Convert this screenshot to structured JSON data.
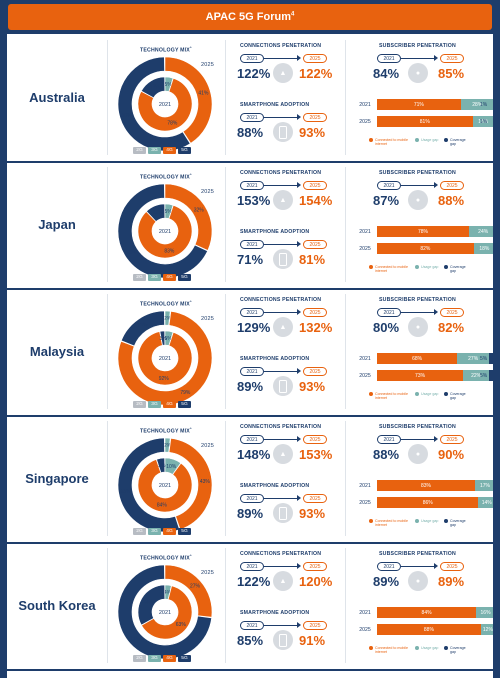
{
  "title": "APAC 5G Forum",
  "title_sup": "4",
  "labels": {
    "technology_mix": "TECHNOLOGY MIX",
    "technology_mix_asterisk": "*",
    "connections_penetration": "CONNECTIONS PENETRATION",
    "smartphone_adoption": "SMARTPHONE ADOPTION",
    "subscriber_penetration": "SUBSCRIBER PENETRATION",
    "year_2021": "2021",
    "year_2025": "2025",
    "legend_connected": "Connected to mobile internet",
    "legend_usage": "Usage gap",
    "legend_coverage": "Coverage gap",
    "tech_2g": "2G",
    "tech_3g": "3G",
    "tech_4g": "4G",
    "tech_5g": "5G"
  },
  "colors": {
    "navy": "#1e3d6b",
    "orange": "#e8620f",
    "teal": "#7ab2ae",
    "grey": "#b7bcc3",
    "light_grey": "#d7dbe0"
  },
  "chart_data": [
    {
      "country": "Australia",
      "type": "pie",
      "technology_mix": {
        "series_order": [
          "2G",
          "3G",
          "4G",
          "5G"
        ],
        "2021": {
          "2G": 0,
          "3G": 5,
          "4G": 78,
          "5G": 17,
          "labels": [
            "5%",
            "78%",
            "17%"
          ]
        },
        "2025": {
          "2G": 0,
          "3G": 0,
          "4G": 41,
          "5G": 59,
          "labels": [
            "41%",
            "59%"
          ]
        }
      },
      "connections_penetration": {
        "2021": "122%",
        "2025": "122%"
      },
      "smartphone_adoption": {
        "2021": "88%",
        "2025": "93%"
      },
      "subscriber_penetration": {
        "2021": "84%",
        "2025": "85%"
      },
      "internet_bars": [
        {
          "year": "2021",
          "connected": 71,
          "usage": 28,
          "coverage": 1,
          "labels": [
            "71%",
            "28%",
            "1%"
          ]
        },
        {
          "year": "2025",
          "connected": 81,
          "usage": 18,
          "coverage": 1,
          "labels": [
            "81%",
            "18%",
            "1%"
          ]
        }
      ]
    },
    {
      "country": "Japan",
      "type": "pie",
      "technology_mix": {
        "series_order": [
          "2G",
          "3G",
          "4G",
          "5G"
        ],
        "2021": {
          "2G": 0,
          "3G": 5,
          "4G": 83,
          "5G": 12,
          "labels": [
            "5%",
            "83%",
            "12%"
          ]
        },
        "2025": {
          "2G": 0,
          "3G": 0,
          "4G": 32,
          "5G": 68,
          "labels": [
            "32%",
            "68%"
          ]
        }
      },
      "connections_penetration": {
        "2021": "153%",
        "2025": "154%"
      },
      "smartphone_adoption": {
        "2021": "71%",
        "2025": "81%"
      },
      "subscriber_penetration": {
        "2021": "87%",
        "2025": "88%"
      },
      "internet_bars": [
        {
          "year": "2021",
          "connected": 78,
          "usage": 24,
          "coverage": 0,
          "labels": [
            "78%",
            "24%"
          ]
        },
        {
          "year": "2025",
          "connected": 82,
          "usage": 18,
          "coverage": 0,
          "labels": [
            "82%",
            "18%"
          ]
        }
      ]
    },
    {
      "country": "Malaysia",
      "type": "pie",
      "technology_mix": {
        "series_order": [
          "2G",
          "3G",
          "4G",
          "5G"
        ],
        "2021": {
          "2G": 0,
          "3G": 5,
          "4G": 92,
          "5G": 3,
          "labels": [
            "5%",
            "92%",
            "3%"
          ]
        },
        "2025": {
          "2G": 0,
          "3G": 2,
          "4G": 79,
          "5G": 19,
          "labels": [
            "2%",
            "79%",
            "19%"
          ]
        }
      },
      "connections_penetration": {
        "2021": "129%",
        "2025": "132%"
      },
      "smartphone_adoption": {
        "2021": "89%",
        "2025": "93%"
      },
      "subscriber_penetration": {
        "2021": "80%",
        "2025": "82%"
      },
      "internet_bars": [
        {
          "year": "2021",
          "connected": 68,
          "usage": 27,
          "coverage": 5,
          "labels": [
            "68%",
            "27%",
            "5%"
          ]
        },
        {
          "year": "2025",
          "connected": 73,
          "usage": 22,
          "coverage": 5,
          "labels": [
            "73%",
            "22%",
            "5%"
          ]
        }
      ]
    },
    {
      "country": "Singapore",
      "type": "pie",
      "technology_mix": {
        "series_order": [
          "2G",
          "3G",
          "4G",
          "5G"
        ],
        "2021": {
          "2G": 0,
          "3G": 10,
          "4G": 84,
          "5G": 5,
          "labels": [
            "10%",
            "84%",
            "5%"
          ]
        },
        "2025": {
          "2G": 0,
          "3G": 2,
          "4G": 43,
          "5G": 55,
          "labels": [
            "2%",
            "43%",
            "55%"
          ]
        }
      },
      "connections_penetration": {
        "2021": "148%",
        "2025": "153%"
      },
      "smartphone_adoption": {
        "2021": "89%",
        "2025": "93%"
      },
      "subscriber_penetration": {
        "2021": "88%",
        "2025": "90%"
      },
      "internet_bars": [
        {
          "year": "2021",
          "connected": 83,
          "usage": 17,
          "coverage": 0,
          "labels": [
            "83%",
            "17%"
          ]
        },
        {
          "year": "2025",
          "connected": 86,
          "usage": 14,
          "coverage": 0,
          "labels": [
            "86%",
            "14%"
          ]
        }
      ]
    },
    {
      "country": "South Korea",
      "type": "pie",
      "technology_mix": {
        "series_order": [
          "2G",
          "3G",
          "4G",
          "5G"
        ],
        "2021": {
          "2G": 0,
          "3G": 4,
          "4G": 63,
          "5G": 33,
          "labels": [
            "4%",
            "63%",
            "33%"
          ]
        },
        "2025": {
          "2G": 0,
          "3G": 0,
          "4G": 27,
          "5G": 73,
          "labels": [
            "27%",
            "73%"
          ]
        }
      },
      "connections_penetration": {
        "2021": "122%",
        "2025": "120%"
      },
      "smartphone_adoption": {
        "2021": "85%",
        "2025": "91%"
      },
      "subscriber_penetration": {
        "2021": "89%",
        "2025": "89%"
      },
      "internet_bars": [
        {
          "year": "2021",
          "connected": 84,
          "usage": 16,
          "coverage": 0,
          "labels": [
            "84%",
            "16%"
          ]
        },
        {
          "year": "2025",
          "connected": 88,
          "usage": 12,
          "coverage": 0,
          "labels": [
            "88%",
            "12%"
          ]
        }
      ]
    }
  ]
}
